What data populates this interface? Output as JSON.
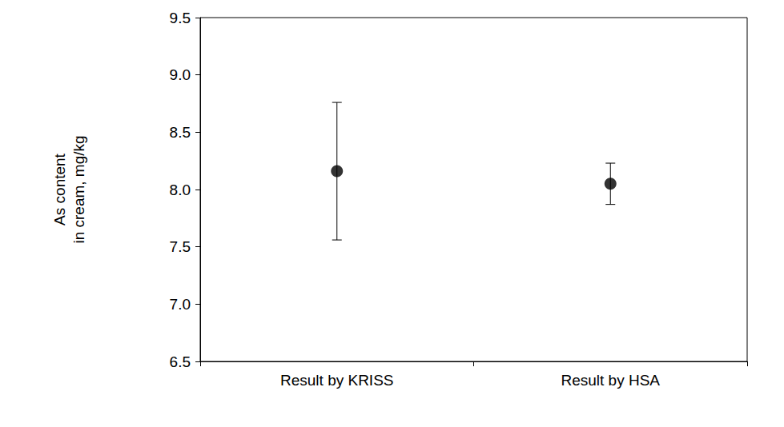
{
  "chart_data": {
    "type": "scatter",
    "y_label": "As content\nin cream, mg/kg",
    "categories": [
      "Result by KRISS",
      "Result by HSA"
    ],
    "values": [
      8.16,
      8.05
    ],
    "errors": [
      0.6,
      0.18
    ],
    "color": "#000000",
    "marker": "circle",
    "ylim": [
      6.5,
      9.5
    ],
    "yticks": [
      6.5,
      {
        "value": 7,
        "label": "7.0"
      },
      7.5,
      {
        "value": 8,
        "label": "8.0"
      },
      8.5,
      {
        "value": 9,
        "label": "9.0"
      },
      9.5
    ],
    "grid": false
  }
}
